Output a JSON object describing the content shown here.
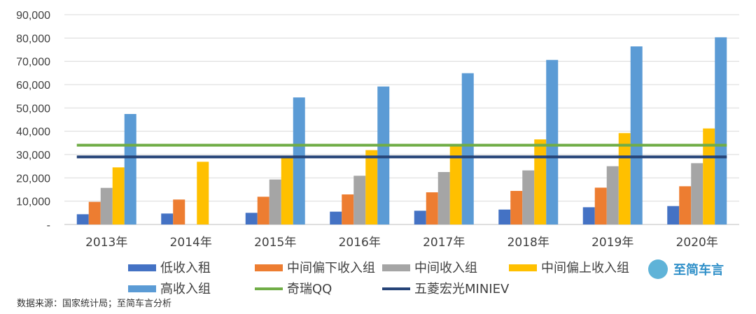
{
  "chart_data": {
    "type": "bar",
    "categories": [
      "2013年",
      "2014年",
      "2015年",
      "2016年",
      "2017年",
      "2018年",
      "2019年",
      "2020年"
    ],
    "ylim": [
      0,
      90000
    ],
    "yticks": [
      "-",
      "10,000",
      "20,000",
      "30,000",
      "40,000",
      "50,000",
      "60,000",
      "70,000",
      "80,000",
      "90,000"
    ],
    "grid": true,
    "legend_position": "bottom",
    "series": [
      {
        "name": "低收入租",
        "color": "#4472c4",
        "values": [
          4400,
          4700,
          5000,
          5500,
          5900,
          6400,
          7400,
          7900
        ]
      },
      {
        "name": "中间偏下收入组",
        "color": "#ed7d31",
        "values": [
          9700,
          10700,
          11900,
          12900,
          13800,
          14400,
          15800,
          16400
        ]
      },
      {
        "name": "中间收入组",
        "color": "#a5a5a5",
        "values": [
          15700,
          null,
          19300,
          20900,
          22500,
          23200,
          25000,
          26300
        ]
      },
      {
        "name": "中间偏上收入组",
        "color": "#ffc000",
        "values": [
          24500,
          26900,
          29000,
          31900,
          34000,
          36500,
          39200,
          41200
        ]
      },
      {
        "name": "高收入组",
        "color": "#5b9bd5",
        "values": [
          47400,
          null,
          54500,
          59200,
          64900,
          70600,
          76400,
          80300
        ]
      }
    ],
    "reference_lines": [
      {
        "name": "奇瑞QQ",
        "color": "#70ad47",
        "value": 34000
      },
      {
        "name": "五菱宏光MINIEV",
        "color": "#264478",
        "value": 29000
      }
    ]
  },
  "source_text": "数据来源：国家统计局；至简车言分析",
  "logo_text": "至简车言"
}
